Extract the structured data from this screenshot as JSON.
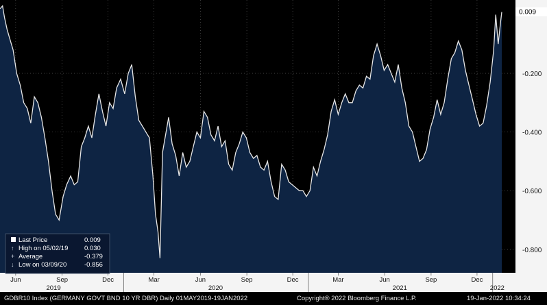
{
  "chart_data": {
    "type": "area",
    "yticks": [
      -0.8,
      -0.6,
      -0.4,
      -0.2
    ],
    "ytick_labels": [
      "-0.800",
      "-0.600",
      "-0.400",
      "-0.200"
    ],
    "last_value_label": "0.009",
    "ylim": [
      -0.88,
      0.05
    ],
    "xlim": [
      "2019-05-01",
      "2022-01-19"
    ],
    "month_ticks": [
      {
        "date": "2019-06-01",
        "label": "Jun"
      },
      {
        "date": "2019-09-01",
        "label": "Sep"
      },
      {
        "date": "2019-12-01",
        "label": "Dec"
      },
      {
        "date": "2020-03-01",
        "label": "Mar"
      },
      {
        "date": "2020-06-01",
        "label": "Jun"
      },
      {
        "date": "2020-09-01",
        "label": "Sep"
      },
      {
        "date": "2020-12-01",
        "label": "Dec"
      },
      {
        "date": "2021-03-01",
        "label": "Mar"
      },
      {
        "date": "2021-06-01",
        "label": "Jun"
      },
      {
        "date": "2021-09-01",
        "label": "Sep"
      },
      {
        "date": "2021-12-01",
        "label": "Dec"
      }
    ],
    "year_ticks": [
      {
        "date": "2019-01-01",
        "label": "2019",
        "label_date": "2019-08-15"
      },
      {
        "date": "2020-01-01",
        "label": "2020",
        "label_date": "2020-07-01"
      },
      {
        "date": "2021-01-01",
        "label": "2021",
        "label_date": "2021-07-01"
      },
      {
        "date": "2022-01-01",
        "label": "2022",
        "label_date": "2022-01-10"
      }
    ],
    "series": [
      {
        "x": [
          "2019-05-01",
          "2019-05-06",
          "2019-05-10",
          "2019-05-15",
          "2019-05-20",
          "2019-05-27",
          "2019-06-03",
          "2019-06-10",
          "2019-06-17",
          "2019-06-24",
          "2019-07-01",
          "2019-07-08",
          "2019-07-15",
          "2019-07-22",
          "2019-07-29",
          "2019-08-05",
          "2019-08-12",
          "2019-08-19",
          "2019-08-26",
          "2019-09-03",
          "2019-09-10",
          "2019-09-18",
          "2019-09-25",
          "2019-10-02",
          "2019-10-09",
          "2019-10-16",
          "2019-10-23",
          "2019-10-30",
          "2019-11-06",
          "2019-11-13",
          "2019-11-20",
          "2019-11-27",
          "2019-12-04",
          "2019-12-11",
          "2019-12-18",
          "2019-12-26",
          "2020-01-03",
          "2020-01-10",
          "2020-01-17",
          "2020-01-24",
          "2020-01-31",
          "2020-02-07",
          "2020-02-14",
          "2020-02-21",
          "2020-02-28",
          "2020-03-04",
          "2020-03-09",
          "2020-03-13",
          "2020-03-18",
          "2020-03-23",
          "2020-03-30",
          "2020-04-06",
          "2020-04-13",
          "2020-04-20",
          "2020-04-27",
          "2020-05-04",
          "2020-05-11",
          "2020-05-18",
          "2020-05-25",
          "2020-06-01",
          "2020-06-08",
          "2020-06-15",
          "2020-06-22",
          "2020-06-29",
          "2020-07-06",
          "2020-07-13",
          "2020-07-20",
          "2020-07-27",
          "2020-08-03",
          "2020-08-10",
          "2020-08-17",
          "2020-08-24",
          "2020-08-31",
          "2020-09-07",
          "2020-09-14",
          "2020-09-21",
          "2020-09-28",
          "2020-10-05",
          "2020-10-12",
          "2020-10-19",
          "2020-10-26",
          "2020-11-02",
          "2020-11-09",
          "2020-11-16",
          "2020-11-23",
          "2020-11-30",
          "2020-12-07",
          "2020-12-14",
          "2020-12-21",
          "2020-12-28",
          "2021-01-04",
          "2021-01-11",
          "2021-01-18",
          "2021-01-25",
          "2021-02-01",
          "2021-02-08",
          "2021-02-15",
          "2021-02-22",
          "2021-03-01",
          "2021-03-08",
          "2021-03-15",
          "2021-03-22",
          "2021-03-29",
          "2021-04-05",
          "2021-04-12",
          "2021-04-19",
          "2021-04-26",
          "2021-05-03",
          "2021-05-10",
          "2021-05-17",
          "2021-05-24",
          "2021-05-31",
          "2021-06-07",
          "2021-06-14",
          "2021-06-21",
          "2021-06-28",
          "2021-07-05",
          "2021-07-12",
          "2021-07-19",
          "2021-07-26",
          "2021-08-02",
          "2021-08-09",
          "2021-08-16",
          "2021-08-23",
          "2021-08-30",
          "2021-09-06",
          "2021-09-13",
          "2021-09-20",
          "2021-09-27",
          "2021-10-04",
          "2021-10-11",
          "2021-10-18",
          "2021-10-25",
          "2021-11-01",
          "2021-11-08",
          "2021-11-15",
          "2021-11-22",
          "2021-11-29",
          "2021-12-06",
          "2021-12-13",
          "2021-12-20",
          "2021-12-27",
          "2022-01-03",
          "2022-01-07",
          "2022-01-12",
          "2022-01-17",
          "2022-01-19"
        ],
        "values": [
          0.02,
          0.03,
          -0.01,
          -0.05,
          -0.08,
          -0.12,
          -0.2,
          -0.24,
          -0.3,
          -0.32,
          -0.37,
          -0.28,
          -0.3,
          -0.35,
          -0.42,
          -0.5,
          -0.6,
          -0.68,
          -0.7,
          -0.62,
          -0.58,
          -0.55,
          -0.58,
          -0.57,
          -0.45,
          -0.42,
          -0.38,
          -0.42,
          -0.34,
          -0.27,
          -0.33,
          -0.38,
          -0.3,
          -0.32,
          -0.25,
          -0.22,
          -0.27,
          -0.2,
          -0.17,
          -0.28,
          -0.36,
          -0.38,
          -0.4,
          -0.42,
          -0.55,
          -0.68,
          -0.74,
          -0.83,
          -0.47,
          -0.42,
          -0.35,
          -0.44,
          -0.48,
          -0.55,
          -0.47,
          -0.52,
          -0.5,
          -0.45,
          -0.4,
          -0.42,
          -0.33,
          -0.35,
          -0.41,
          -0.43,
          -0.38,
          -0.45,
          -0.43,
          -0.51,
          -0.53,
          -0.47,
          -0.44,
          -0.4,
          -0.42,
          -0.47,
          -0.49,
          -0.48,
          -0.52,
          -0.53,
          -0.5,
          -0.57,
          -0.62,
          -0.63,
          -0.51,
          -0.53,
          -0.57,
          -0.58,
          -0.59,
          -0.6,
          -0.6,
          -0.62,
          -0.6,
          -0.52,
          -0.55,
          -0.5,
          -0.46,
          -0.41,
          -0.33,
          -0.29,
          -0.34,
          -0.3,
          -0.27,
          -0.3,
          -0.3,
          -0.26,
          -0.24,
          -0.25,
          -0.21,
          -0.22,
          -0.14,
          -0.1,
          -0.14,
          -0.19,
          -0.17,
          -0.2,
          -0.23,
          -0.17,
          -0.25,
          -0.3,
          -0.38,
          -0.4,
          -0.45,
          -0.5,
          -0.49,
          -0.46,
          -0.39,
          -0.35,
          -0.29,
          -0.34,
          -0.3,
          -0.22,
          -0.15,
          -0.13,
          -0.09,
          -0.12,
          -0.19,
          -0.24,
          -0.29,
          -0.34,
          -0.38,
          -0.37,
          -0.31,
          -0.23,
          -0.12,
          0.0,
          -0.1,
          -0.02,
          0.009
        ]
      }
    ],
    "legend": {
      "items": [
        {
          "label": "Last Price",
          "value": "0.009",
          "marker": "box"
        },
        {
          "label": "High on 05/02/19",
          "value": "0.030",
          "marker": "up-arrow"
        },
        {
          "label": "Average",
          "value": "-0.379",
          "marker": "plus"
        },
        {
          "label": "Low on 03/09/20",
          "value": "-0.856",
          "marker": "down-arrow"
        }
      ]
    },
    "footer": {
      "left": "GDBR10 Index (GERMANY GOVT BND 10 YR DBR)  Daily 01MAY2019-19JAN2022",
      "center": "Copyright® 2022 Bloomberg Finance L.P.",
      "right": "19-Jan-2022 10:34:24"
    },
    "colors": {
      "background": "#000000",
      "area_fill": "#0e2443",
      "line": "#e6e6e6",
      "axis_panel": "#f4f4f4",
      "axis_text": "#111111",
      "gridline": "#5a5a5a"
    }
  }
}
